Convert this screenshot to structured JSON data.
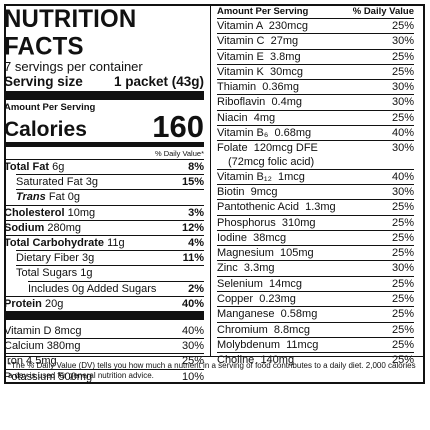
{
  "title": "NUTRITION FACTS",
  "servings_per_container": "7 servings per container",
  "serving_size_label": "Serving size",
  "serving_size_value": "1 packet (43g)",
  "amount_per_serving": "Amount Per Serving",
  "calories_label": "Calories",
  "calories_value": "160",
  "dv_header": "% Daily Value*",
  "nutrients": [
    {
      "name": "Total Fat",
      "amount": "6g",
      "dv": "8%"
    },
    {
      "name": "Saturated Fat",
      "amount": "3g",
      "dv": "15%"
    },
    {
      "name": "Trans",
      "amount": "Fat 0g",
      "dv": ""
    },
    {
      "name": "Cholesterol",
      "amount": "10mg",
      "dv": "3%"
    },
    {
      "name": "Sodium",
      "amount": "280mg",
      "dv": "12%"
    },
    {
      "name": "Total Carbohydrate",
      "amount": "11g",
      "dv": "4%"
    },
    {
      "name": "Dietary Fiber",
      "amount": "3g",
      "dv": "11%"
    },
    {
      "name": "Total Sugars",
      "amount": "1g",
      "dv": ""
    },
    {
      "name": "Includes 0g Added Sugars",
      "amount": "",
      "dv": "2%"
    },
    {
      "name": "Protein",
      "amount": "20g",
      "dv": "40%"
    }
  ],
  "minerals_left": [
    {
      "name": "Vitamin D",
      "amount": "8mcg",
      "dv": "40%"
    },
    {
      "name": "Calcium",
      "amount": "380mg",
      "dv": "30%"
    },
    {
      "name": "Iron",
      "amount": "4.5mg",
      "dv": "25%"
    },
    {
      "name": "Potassium",
      "amount": "500mg",
      "dv": "10%"
    }
  ],
  "right_header": {
    "left": "Amount Per Serving",
    "right": "% Daily Value"
  },
  "vitamins": [
    {
      "name": "Vitamin A",
      "amount": "230mcg",
      "dv": "25%"
    },
    {
      "name": "Vitamin C",
      "amount": "27mg",
      "dv": "30%"
    },
    {
      "name": "Vitamin E",
      "amount": "3.8mg",
      "dv": "25%"
    },
    {
      "name": "Vitamin K",
      "amount": "30mcg",
      "dv": "25%"
    },
    {
      "name": "Thiamin",
      "amount": "0.36mg",
      "dv": "30%"
    },
    {
      "name": "Riboflavin",
      "amount": "0.4mg",
      "dv": "30%"
    },
    {
      "name": "Niacin",
      "amount": "4mg",
      "dv": "25%"
    },
    {
      "name": "Vitamin B₆",
      "amount": "0.68mg",
      "dv": "40%"
    },
    {
      "name": "Folate",
      "amount": "120mcg DFE",
      "dv": "30%",
      "sub": "(72mcg folic acid)"
    },
    {
      "name": "Vitamin B₁₂",
      "amount": "1mcg",
      "dv": "40%"
    },
    {
      "name": "Biotin",
      "amount": "9mcg",
      "dv": "30%"
    },
    {
      "name": "Pantothenic Acid",
      "amount": "1.3mg",
      "dv": "25%"
    },
    {
      "name": "Phosphorus",
      "amount": "310mg",
      "dv": "25%"
    },
    {
      "name": "Iodine",
      "amount": "38mcg",
      "dv": "25%"
    },
    {
      "name": "Magnesium",
      "amount": "105mg",
      "dv": "25%"
    },
    {
      "name": "Zinc",
      "amount": "3.3mg",
      "dv": "30%"
    },
    {
      "name": "Selenium",
      "amount": "14mcg",
      "dv": "25%"
    },
    {
      "name": "Copper",
      "amount": "0.23mg",
      "dv": "25%"
    },
    {
      "name": "Manganese",
      "amount": "0.58mg",
      "dv": "25%"
    },
    {
      "name": "Chromium",
      "amount": "8.8mcg",
      "dv": "25%"
    },
    {
      "name": "Molybdenum",
      "amount": "11mcg",
      "dv": "25%"
    },
    {
      "name": "Choline",
      "amount": "140mg",
      "dv": "25%"
    }
  ],
  "footnote": "*The % Daily Value (DV) tells you how much a nutrient in a serving of food contributes to a daily diet. 2,000 calories a day is used for general nutrition advice."
}
